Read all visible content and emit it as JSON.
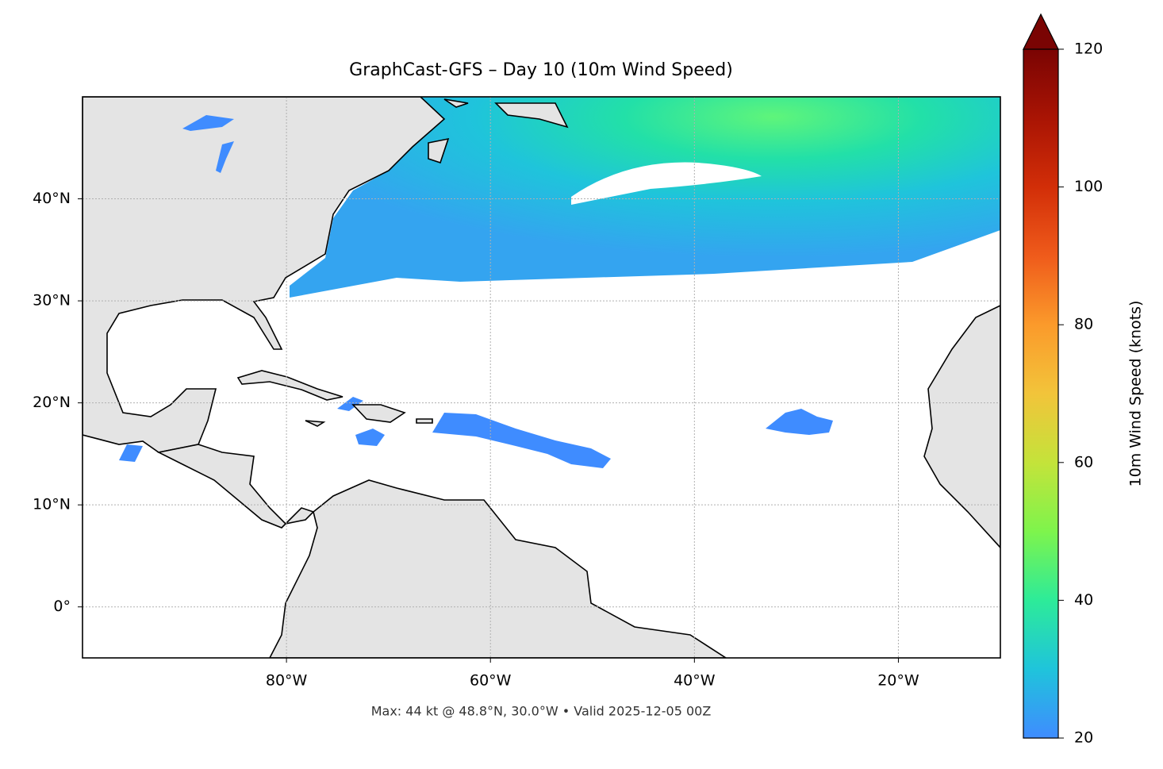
{
  "map": {
    "title": "GraphCast-GFS – Day 10 (10m Wind Speed)",
    "lonlim": [
      -100,
      -10
    ],
    "latlim": [
      -5,
      50
    ],
    "xticks": [
      {
        "value": -80,
        "label": "80°W"
      },
      {
        "value": -60,
        "label": "60°W"
      },
      {
        "value": -40,
        "label": "40°W"
      },
      {
        "value": -20,
        "label": "20°W"
      }
    ],
    "yticks": [
      {
        "value": 0,
        "label": "0°"
      },
      {
        "value": 10,
        "label": "10°N"
      },
      {
        "value": 20,
        "label": "20°N"
      },
      {
        "value": 30,
        "label": "30°N"
      },
      {
        "value": 40,
        "label": "40°N"
      }
    ],
    "grid": true,
    "caption": "Max: 44 kt @ 48.8°N, 30.0°W • Valid 2025-12-05 00Z"
  },
  "colorbar": {
    "label": "10m Wind Speed (knots)",
    "lim": [
      20,
      120
    ],
    "ticks": [
      20,
      40,
      60,
      80,
      100,
      120
    ],
    "extend": "max"
  }
}
